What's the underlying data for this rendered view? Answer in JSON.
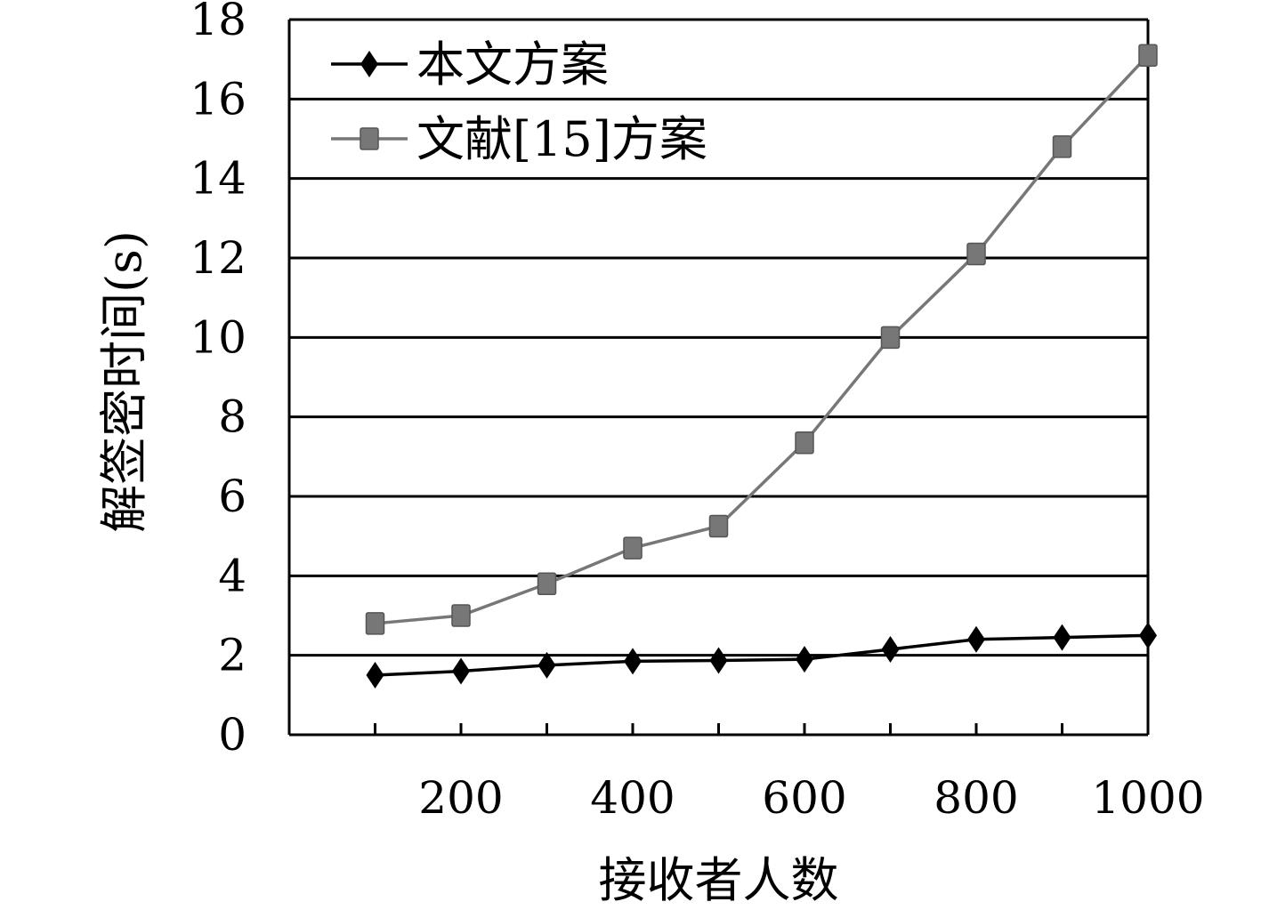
{
  "chart_data": {
    "type": "line",
    "title": "",
    "xlabel": "接收者人数",
    "ylabel": "解签密时间(s)",
    "x": [
      100,
      200,
      300,
      400,
      500,
      600,
      700,
      800,
      900,
      1000
    ],
    "x_ticks": [
      200,
      400,
      600,
      800,
      1000
    ],
    "y_ticks": [
      0,
      2,
      4,
      6,
      8,
      10,
      12,
      14,
      16,
      18
    ],
    "xlim": [
      0,
      1000
    ],
    "ylim": [
      0,
      18
    ],
    "grid": "horizontal",
    "legend_position": "top-left",
    "series": [
      {
        "name": "本文方案",
        "marker": "diamond",
        "color": "#000000",
        "values": [
          1.5,
          1.6,
          1.75,
          1.85,
          1.87,
          1.9,
          2.15,
          2.4,
          2.45,
          2.5
        ]
      },
      {
        "name": "文献[15]方案",
        "marker": "square",
        "color": "#777777",
        "values": [
          2.8,
          3.0,
          3.8,
          4.7,
          5.25,
          7.35,
          10.0,
          12.1,
          14.8,
          17.1
        ]
      }
    ]
  }
}
